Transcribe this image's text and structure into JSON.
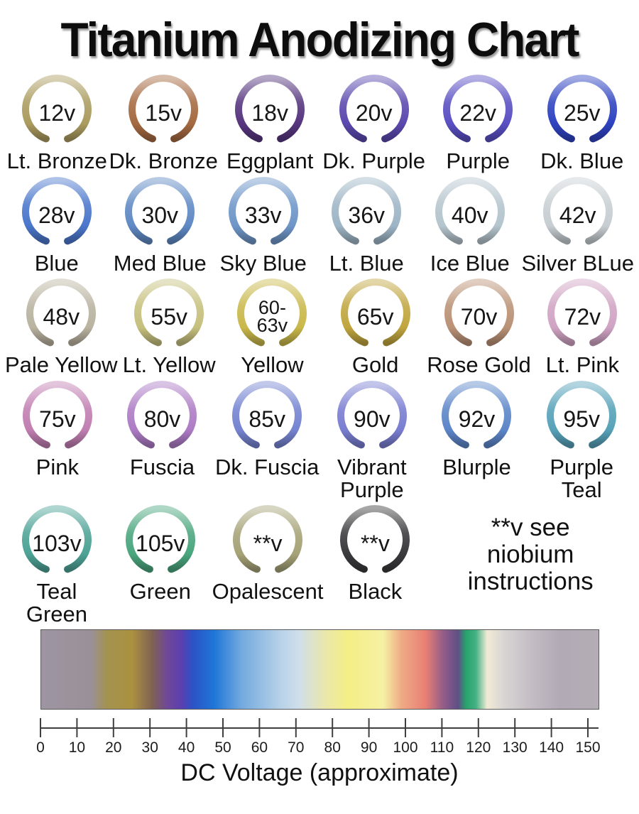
{
  "title": "Titanium Anodizing Chart",
  "rows": [
    {
      "items": [
        {
          "voltage": [
            "12v"
          ],
          "name": [
            "Lt. Bronze"
          ],
          "color": "#ab9c60"
        },
        {
          "voltage": [
            "15v"
          ],
          "name": [
            "Dk. Bronze"
          ],
          "color": "#a56a41"
        },
        {
          "voltage": [
            "18v"
          ],
          "name": [
            "Eggplant"
          ],
          "color": "#57367f"
        },
        {
          "voltage": [
            "20v"
          ],
          "name": [
            "Dk. Purple"
          ],
          "color": "#5b49ae"
        },
        {
          "voltage": [
            "22v"
          ],
          "name": [
            "Purple"
          ],
          "color": "#5a50c3"
        },
        {
          "voltage": [
            "25v"
          ],
          "name": [
            "Dk. Blue"
          ],
          "color": "#2f43c1"
        }
      ]
    },
    {
      "items": [
        {
          "voltage": [
            "28v"
          ],
          "name": [
            "Blue"
          ],
          "color": "#4b77cb"
        },
        {
          "voltage": [
            "30v"
          ],
          "name": [
            "Med Blue"
          ],
          "color": "#6089c4"
        },
        {
          "voltage": [
            "33v"
          ],
          "name": [
            "Sky Blue"
          ],
          "color": "#6f96c8"
        },
        {
          "voltage": [
            "36v"
          ],
          "name": [
            "Lt. Blue"
          ],
          "color": "#9eb5c6"
        },
        {
          "voltage": [
            "40v"
          ],
          "name": [
            "Ice Blue"
          ],
          "color": "#b5c5cd"
        },
        {
          "voltage": [
            "42v"
          ],
          "name": [
            "Silver BLue"
          ],
          "color": "#c7ced2"
        }
      ]
    },
    {
      "items": [
        {
          "voltage": [
            "48v"
          ],
          "name": [
            "Pale Yellow"
          ],
          "color": "#b9b3a0"
        },
        {
          "voltage": [
            "55v"
          ],
          "name": [
            "Lt. Yellow"
          ],
          "color": "#c6c07e"
        },
        {
          "voltage": [
            "60-",
            "63v"
          ],
          "name": [
            "Yellow"
          ],
          "color": "#cab84b"
        },
        {
          "voltage": [
            "65v"
          ],
          "name": [
            "Gold"
          ],
          "color": "#c0a53f"
        },
        {
          "voltage": [
            "70v"
          ],
          "name": [
            "Rose Gold"
          ],
          "color": "#ba9276"
        },
        {
          "voltage": [
            "72v"
          ],
          "name": [
            "Lt. Pink"
          ],
          "color": "#d0a4c4"
        }
      ]
    },
    {
      "items": [
        {
          "voltage": [
            "75v"
          ],
          "name": [
            "Pink"
          ],
          "color": "#c17fb2"
        },
        {
          "voltage": [
            "80v"
          ],
          "name": [
            "Fuscia"
          ],
          "color": "#ad7cc5"
        },
        {
          "voltage": [
            "85v"
          ],
          "name": [
            "Dk. Fuscia"
          ],
          "color": "#7684d1"
        },
        {
          "voltage": [
            "90v"
          ],
          "name": [
            "Vibrant",
            "Purple"
          ],
          "color": "#7a7ed1"
        },
        {
          "voltage": [
            "92v"
          ],
          "name": [
            "Blurple"
          ],
          "color": "#5d86c9"
        },
        {
          "voltage": [
            "95v"
          ],
          "name": [
            "Purple",
            "Teal"
          ],
          "color": "#57a2b9"
        }
      ]
    },
    {
      "has_note": true,
      "items": [
        {
          "voltage": [
            "103v"
          ],
          "name": [
            "Teal",
            "Green"
          ],
          "color": "#4ea396"
        },
        {
          "voltage": [
            "105v"
          ],
          "name": [
            "Green"
          ],
          "color": "#4aa67e"
        },
        {
          "voltage": [
            "**v"
          ],
          "name": [
            "Opalescent"
          ],
          "color": "#a6a378"
        },
        {
          "voltage": [
            "**v"
          ],
          "name": [
            "Black"
          ],
          "color": "#3a393c"
        }
      ]
    }
  ],
  "note": {
    "lines": [
      "**v see",
      "niobium",
      "instructions"
    ]
  },
  "spectrum": {
    "stops": [
      {
        "at": 0.0,
        "color": "#9d95a1"
      },
      {
        "at": 0.09,
        "color": "#9a9098"
      },
      {
        "at": 0.118,
        "color": "#a3924f"
      },
      {
        "at": 0.163,
        "color": "#ab9140"
      },
      {
        "at": 0.2,
        "color": "#7f6154"
      },
      {
        "at": 0.226,
        "color": "#6f4898"
      },
      {
        "at": 0.252,
        "color": "#5b3fb0"
      },
      {
        "at": 0.271,
        "color": "#2c52c5"
      },
      {
        "at": 0.31,
        "color": "#1e76d8"
      },
      {
        "at": 0.36,
        "color": "#74aade"
      },
      {
        "at": 0.43,
        "color": "#b8d2e8"
      },
      {
        "at": 0.462,
        "color": "#cfdeeb"
      },
      {
        "at": 0.506,
        "color": "#e9e6af"
      },
      {
        "at": 0.55,
        "color": "#f4ef85"
      },
      {
        "at": 0.614,
        "color": "#f6f0a4"
      },
      {
        "at": 0.646,
        "color": "#efab85"
      },
      {
        "at": 0.69,
        "color": "#e87f75"
      },
      {
        "at": 0.722,
        "color": "#925c89"
      },
      {
        "at": 0.748,
        "color": "#5f4f86"
      },
      {
        "at": 0.762,
        "color": "#28a36c"
      },
      {
        "at": 0.78,
        "color": "#43b184"
      },
      {
        "at": 0.8,
        "color": "#f0ebd5"
      },
      {
        "at": 0.83,
        "color": "#d9d5d3"
      },
      {
        "at": 0.88,
        "color": "#c3bcc4"
      },
      {
        "at": 0.93,
        "color": "#b2aab5"
      },
      {
        "at": 1.0,
        "color": "#b4adb5"
      }
    ]
  },
  "axis": {
    "ticks": [
      "0",
      "10",
      "20",
      "30",
      "40",
      "50",
      "60",
      "70",
      "80",
      "90",
      "100",
      "110",
      "120",
      "130",
      "140",
      "150"
    ],
    "label": "DC Voltage (approximate)"
  },
  "chart_data": {
    "type": "table",
    "title": "Titanium Anodizing Chart",
    "xlabel": "DC Voltage (approximate)",
    "axis_range": [
      0,
      150
    ],
    "tick_step": 10,
    "note": "**v see niobium instructions",
    "entries": [
      {
        "voltage": "12v",
        "color_name": "Lt. Bronze",
        "hex": "#ab9c60"
      },
      {
        "voltage": "15v",
        "color_name": "Dk. Bronze",
        "hex": "#a56a41"
      },
      {
        "voltage": "18v",
        "color_name": "Eggplant",
        "hex": "#57367f"
      },
      {
        "voltage": "20v",
        "color_name": "Dk. Purple",
        "hex": "#5b49ae"
      },
      {
        "voltage": "22v",
        "color_name": "Purple",
        "hex": "#5a50c3"
      },
      {
        "voltage": "25v",
        "color_name": "Dk. Blue",
        "hex": "#2f43c1"
      },
      {
        "voltage": "28v",
        "color_name": "Blue",
        "hex": "#4b77cb"
      },
      {
        "voltage": "30v",
        "color_name": "Med Blue",
        "hex": "#6089c4"
      },
      {
        "voltage": "33v",
        "color_name": "Sky Blue",
        "hex": "#6f96c8"
      },
      {
        "voltage": "36v",
        "color_name": "Lt. Blue",
        "hex": "#9eb5c6"
      },
      {
        "voltage": "40v",
        "color_name": "Ice Blue",
        "hex": "#b5c5cd"
      },
      {
        "voltage": "42v",
        "color_name": "Silver BLue",
        "hex": "#c7ced2"
      },
      {
        "voltage": "48v",
        "color_name": "Pale Yellow",
        "hex": "#b9b3a0"
      },
      {
        "voltage": "55v",
        "color_name": "Lt. Yellow",
        "hex": "#c6c07e"
      },
      {
        "voltage": "60-63v",
        "color_name": "Yellow",
        "hex": "#cab84b"
      },
      {
        "voltage": "65v",
        "color_name": "Gold",
        "hex": "#c0a53f"
      },
      {
        "voltage": "70v",
        "color_name": "Rose Gold",
        "hex": "#ba9276"
      },
      {
        "voltage": "72v",
        "color_name": "Lt. Pink",
        "hex": "#d0a4c4"
      },
      {
        "voltage": "75v",
        "color_name": "Pink",
        "hex": "#c17fb2"
      },
      {
        "voltage": "80v",
        "color_name": "Fuscia",
        "hex": "#ad7cc5"
      },
      {
        "voltage": "85v",
        "color_name": "Dk. Fuscia",
        "hex": "#7684d1"
      },
      {
        "voltage": "90v",
        "color_name": "Vibrant Purple",
        "hex": "#7a7ed1"
      },
      {
        "voltage": "92v",
        "color_name": "Blurple",
        "hex": "#5d86c9"
      },
      {
        "voltage": "95v",
        "color_name": "Purple Teal",
        "hex": "#57a2b9"
      },
      {
        "voltage": "103v",
        "color_name": "Teal Green",
        "hex": "#4ea396"
      },
      {
        "voltage": "105v",
        "color_name": "Green",
        "hex": "#4aa67e"
      },
      {
        "voltage": "**v",
        "color_name": "Opalescent",
        "hex": "#a6a378"
      },
      {
        "voltage": "**v",
        "color_name": "Black",
        "hex": "#3a393c"
      }
    ]
  }
}
